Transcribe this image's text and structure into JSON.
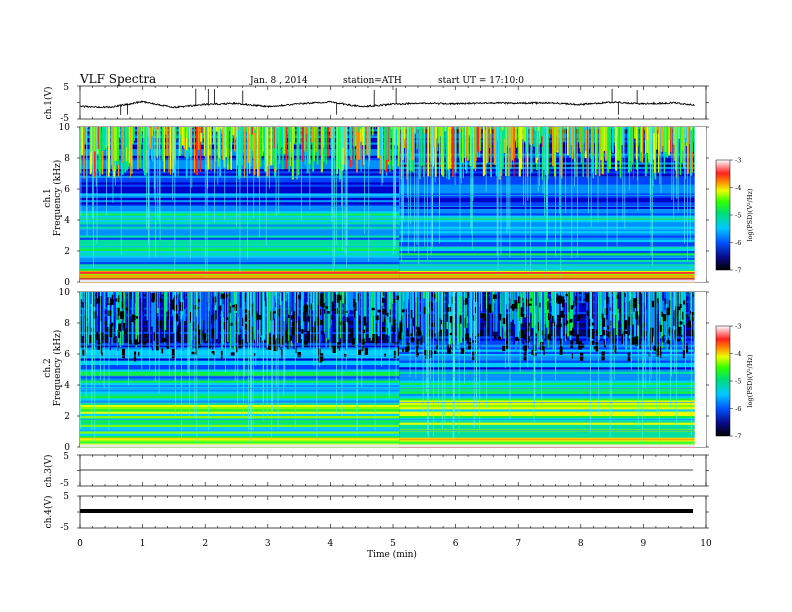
{
  "header": {
    "title": "VLF Spectra",
    "date": "Jan. 8 , 2014",
    "station": "station=ATH",
    "start": "start  UT  =   17:10:0"
  },
  "xaxis": {
    "label": "Time  (min)",
    "ticks": [
      "0",
      "1",
      "2",
      "3",
      "4",
      "5",
      "6",
      "7",
      "8",
      "9",
      "10"
    ],
    "range": [
      0,
      10
    ],
    "data_end": 9.82
  },
  "panels": {
    "ch1": {
      "label": "ch.1(V)",
      "ticks": [
        "5",
        "-5"
      ],
      "ylim": [
        -5,
        5
      ]
    },
    "ch3": {
      "label": "ch.3(V)",
      "ticks": [
        "5",
        "-5"
      ],
      "ylim": [
        -5,
        5
      ]
    },
    "ch4": {
      "label": "ch.4(V)",
      "ticks": [
        "5",
        "-5"
      ],
      "ylim": [
        -5,
        5
      ]
    },
    "spec1": {
      "label": "ch.1",
      "ticks": [
        "10",
        "8",
        "6",
        "4",
        "2",
        "0"
      ],
      "ylim": [
        0,
        10
      ]
    },
    "spec2": {
      "label": "ch.2",
      "ticks": [
        "10",
        "8",
        "6",
        "4",
        "2",
        "0"
      ],
      "ylim": [
        0,
        10
      ]
    },
    "freq_label": "Frequency  (kHz)"
  },
  "colorbar": {
    "label": "log(PSD)(V²/Hz)",
    "ticks": [
      "-3",
      "-4",
      "-5",
      "-6",
      "-7"
    ],
    "range": [
      -7,
      -3
    ]
  },
  "chart_data": [
    {
      "type": "line",
      "title": "",
      "name": "ch.1(V)",
      "xlabel": "Time  (min)",
      "ylabel": "ch.1(V)",
      "xlim": [
        0,
        10
      ],
      "ylim": [
        -5,
        5
      ],
      "x": [
        0,
        0.5,
        1,
        1.5,
        2,
        2.5,
        3,
        3.5,
        4,
        4.5,
        5,
        5.5,
        6,
        6.5,
        7,
        7.5,
        8,
        8.5,
        9,
        9.5,
        9.82
      ],
      "y": [
        -1.2,
        -1.4,
        0.3,
        -1.5,
        -0.6,
        -0.3,
        -1.2,
        -0.4,
        0.2,
        -1.3,
        -0.5,
        -0.2,
        -0.4,
        -0.1,
        -0.2,
        -0.1,
        -0.6,
        0.1,
        -0.4,
        -0.1,
        -0.8
      ]
    },
    {
      "type": "heatmap",
      "title": "",
      "name": "ch.1",
      "xlabel": "Time  (min)",
      "ylabel": "Frequency  (kHz)",
      "xlim": [
        0,
        10
      ],
      "ylim": [
        0,
        10
      ],
      "zlim": [
        -7,
        -3
      ],
      "colorbar_label": "log(PSD)(V²/Hz)"
    },
    {
      "type": "heatmap",
      "title": "",
      "name": "ch.2",
      "xlabel": "Time  (min)",
      "ylabel": "Frequency  (kHz)",
      "xlim": [
        0,
        10
      ],
      "ylim": [
        0,
        10
      ],
      "zlim": [
        -7,
        -3
      ],
      "colorbar_label": "log(PSD)(V²/Hz)"
    },
    {
      "type": "line",
      "title": "",
      "name": "ch.3(V)",
      "xlabel": "Time  (min)",
      "ylabel": "ch.3(V)",
      "xlim": [
        0,
        10
      ],
      "ylim": [
        -5,
        5
      ],
      "x": [
        0,
        9.82
      ],
      "y": [
        0,
        0
      ]
    },
    {
      "type": "line",
      "title": "",
      "name": "ch.4(V)",
      "xlabel": "Time  (min)",
      "ylabel": "ch.4(V)",
      "xlim": [
        0,
        10
      ],
      "ylim": [
        -5,
        5
      ],
      "x": [
        0,
        9.82
      ],
      "y": [
        0,
        0
      ]
    }
  ]
}
